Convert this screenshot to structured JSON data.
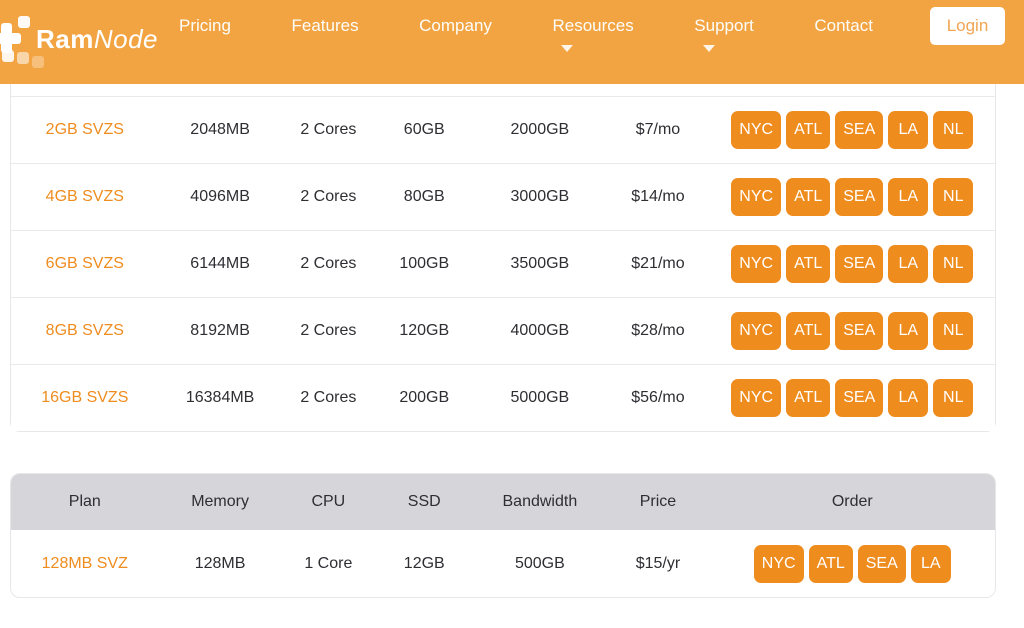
{
  "brand": {
    "bold": "Ram",
    "italic": "Node"
  },
  "nav": {
    "items": [
      {
        "label": "Pricing",
        "has_dropdown": false
      },
      {
        "label": "Features",
        "has_dropdown": false
      },
      {
        "label": "Company",
        "has_dropdown": false
      },
      {
        "label": "Resources",
        "has_dropdown": true
      },
      {
        "label": "Support",
        "has_dropdown": true
      },
      {
        "label": "Contact",
        "has_dropdown": false
      }
    ],
    "login_label": "Login"
  },
  "colors": {
    "header_bg": "#f2a442",
    "button_orange": "#ef8c1e",
    "link_orange": "#ef8c1e",
    "table_header_bg": "#d5d5da",
    "text_dark": "#2e2e33",
    "border_light": "#e7e7ea"
  },
  "svzs_table": {
    "rows": [
      {
        "plan": "2GB SVZS",
        "memory": "2048MB",
        "cpu": "2 Cores",
        "ssd": "60GB",
        "bandwidth": "2000GB",
        "price": "$7/mo",
        "locations": [
          "NYC",
          "ATL",
          "SEA",
          "LA",
          "NL"
        ]
      },
      {
        "plan": "4GB SVZS",
        "memory": "4096MB",
        "cpu": "2 Cores",
        "ssd": "80GB",
        "bandwidth": "3000GB",
        "price": "$14/mo",
        "locations": [
          "NYC",
          "ATL",
          "SEA",
          "LA",
          "NL"
        ]
      },
      {
        "plan": "6GB SVZS",
        "memory": "6144MB",
        "cpu": "2 Cores",
        "ssd": "100GB",
        "bandwidth": "3500GB",
        "price": "$21/mo",
        "locations": [
          "NYC",
          "ATL",
          "SEA",
          "LA",
          "NL"
        ]
      },
      {
        "plan": "8GB SVZS",
        "memory": "8192MB",
        "cpu": "2 Cores",
        "ssd": "120GB",
        "bandwidth": "4000GB",
        "price": "$28/mo",
        "locations": [
          "NYC",
          "ATL",
          "SEA",
          "LA",
          "NL"
        ]
      },
      {
        "plan": "16GB SVZS",
        "memory": "16384MB",
        "cpu": "2 Cores",
        "ssd": "200GB",
        "bandwidth": "5000GB",
        "price": "$56/mo",
        "locations": [
          "NYC",
          "ATL",
          "SEA",
          "LA",
          "NL"
        ]
      }
    ]
  },
  "svz_table": {
    "headers": [
      "Plan",
      "Memory",
      "CPU",
      "SSD",
      "Bandwidth",
      "Price",
      "Order"
    ],
    "rows": [
      {
        "plan": "128MB SVZ",
        "memory": "128MB",
        "cpu": "1 Core",
        "ssd": "12GB",
        "bandwidth": "500GB",
        "price": "$15/yr",
        "locations": [
          "NYC",
          "ATL",
          "SEA",
          "LA"
        ]
      }
    ]
  }
}
